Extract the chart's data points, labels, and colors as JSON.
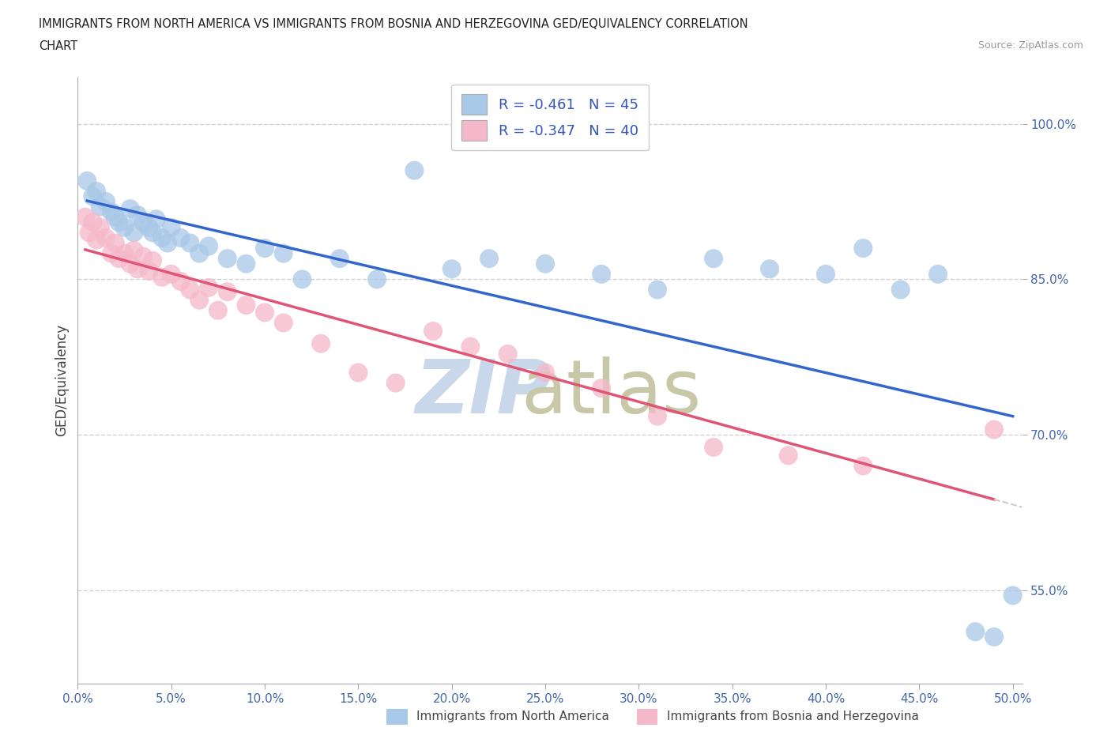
{
  "title_line1": "IMMIGRANTS FROM NORTH AMERICA VS IMMIGRANTS FROM BOSNIA AND HERZEGOVINA GED/EQUIVALENCY CORRELATION",
  "title_line2": "CHART",
  "source_text": "Source: ZipAtlas.com",
  "ylabel": "GED/Equivalency",
  "legend_label1": "Immigrants from North America",
  "legend_label2": "Immigrants from Bosnia and Herzegovina",
  "R1": -0.461,
  "N1": 45,
  "R2": -0.347,
  "N2": 40,
  "color1": "#a8c8e8",
  "color2": "#f5b8ca",
  "line_color1": "#3366cc",
  "line_color2": "#e05575",
  "dashed_line_color": "#cccccc",
  "background": "#ffffff",
  "xlim": [
    0.0,
    0.505
  ],
  "ylim": [
    0.46,
    1.045
  ],
  "yticks": [
    0.55,
    0.7,
    0.85,
    1.0
  ],
  "xticks": [
    0.0,
    0.05,
    0.1,
    0.15,
    0.2,
    0.25,
    0.3,
    0.35,
    0.4,
    0.45,
    0.5
  ],
  "north_america_x": [
    0.005,
    0.008,
    0.01,
    0.012,
    0.015,
    0.018,
    0.02,
    0.022,
    0.025,
    0.028,
    0.03,
    0.032,
    0.035,
    0.038,
    0.04,
    0.042,
    0.045,
    0.048,
    0.05,
    0.055,
    0.06,
    0.065,
    0.07,
    0.08,
    0.09,
    0.1,
    0.11,
    0.12,
    0.14,
    0.16,
    0.18,
    0.2,
    0.22,
    0.25,
    0.28,
    0.31,
    0.34,
    0.37,
    0.4,
    0.42,
    0.44,
    0.46,
    0.48,
    0.49,
    0.5
  ],
  "north_america_y": [
    0.945,
    0.93,
    0.935,
    0.92,
    0.925,
    0.915,
    0.91,
    0.905,
    0.9,
    0.918,
    0.895,
    0.912,
    0.905,
    0.9,
    0.895,
    0.908,
    0.89,
    0.885,
    0.9,
    0.89,
    0.885,
    0.875,
    0.882,
    0.87,
    0.865,
    0.88,
    0.875,
    0.85,
    0.87,
    0.85,
    0.955,
    0.86,
    0.87,
    0.865,
    0.855,
    0.84,
    0.87,
    0.86,
    0.855,
    0.88,
    0.84,
    0.855,
    0.51,
    0.505,
    0.545
  ],
  "bosnia_x": [
    0.004,
    0.006,
    0.008,
    0.01,
    0.012,
    0.015,
    0.018,
    0.02,
    0.022,
    0.025,
    0.028,
    0.03,
    0.032,
    0.035,
    0.038,
    0.04,
    0.045,
    0.05,
    0.055,
    0.06,
    0.065,
    0.07,
    0.075,
    0.08,
    0.09,
    0.1,
    0.11,
    0.13,
    0.15,
    0.17,
    0.19,
    0.21,
    0.23,
    0.25,
    0.28,
    0.31,
    0.34,
    0.38,
    0.42,
    0.49
  ],
  "bosnia_y": [
    0.91,
    0.895,
    0.905,
    0.888,
    0.9,
    0.89,
    0.875,
    0.885,
    0.87,
    0.875,
    0.865,
    0.878,
    0.86,
    0.872,
    0.858,
    0.868,
    0.852,
    0.855,
    0.848,
    0.84,
    0.83,
    0.842,
    0.82,
    0.838,
    0.825,
    0.818,
    0.808,
    0.788,
    0.76,
    0.75,
    0.8,
    0.785,
    0.778,
    0.76,
    0.745,
    0.718,
    0.688,
    0.68,
    0.67,
    0.705
  ],
  "watermark_zip": "ZIP",
  "watermark_atlas": "atlas",
  "watermark_color_zip": "#c8d8ea",
  "watermark_color_atlas": "#c8c8a8",
  "title_color": "#222222",
  "axis_label_color": "#444444",
  "tick_label_color": "#4466aa",
  "grid_color": "#cccccc",
  "legend_text_color": "#3355bb"
}
